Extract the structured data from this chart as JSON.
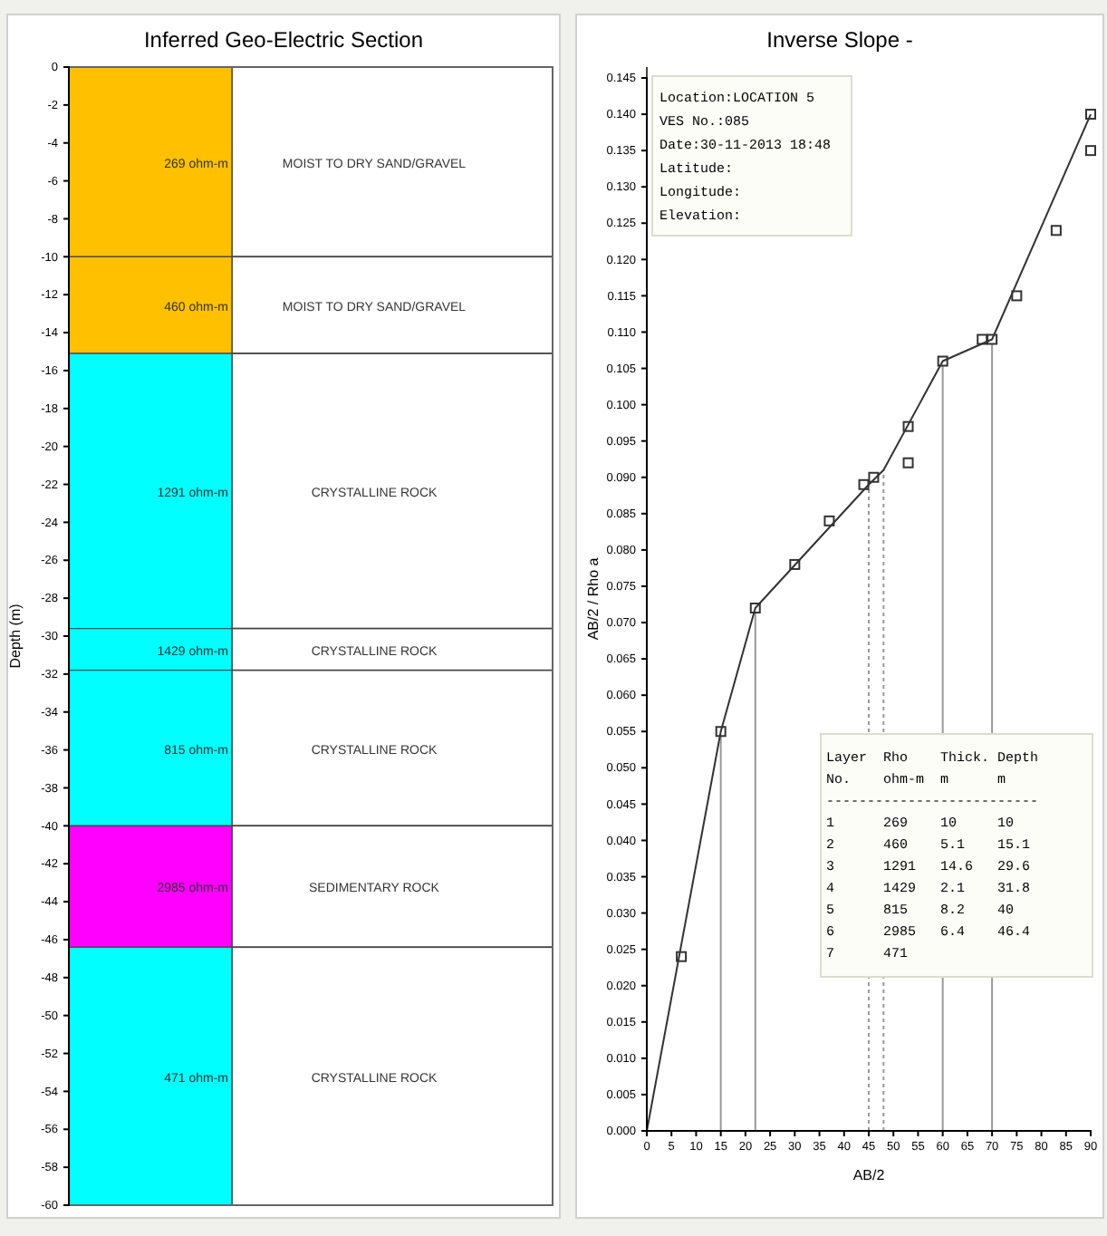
{
  "chart_data": [
    {
      "type": "bar",
      "stacked": true,
      "title": "Inferred Geo-Electric Section",
      "ylabel": "Depth (m)",
      "categories": [
        null
      ],
      "ylim": [
        -60,
        0
      ],
      "yticks": [
        0,
        -2,
        -4,
        -6,
        -8,
        -10,
        -12,
        -14,
        -16,
        -18,
        -20,
        -22,
        -24,
        -26,
        -28,
        -30,
        -32,
        -34,
        -36,
        -38,
        -40,
        -42,
        -44,
        -46,
        -48,
        -50,
        -52,
        -54,
        -56,
        -58,
        -60
      ],
      "series": [
        {
          "name": "MOIST TO DRY SAND/GRAVEL",
          "color": "#ffc000",
          "values": [
            -10
          ]
        },
        {
          "name": "MOIST TO DRY SAND/GRAVEL",
          "color": "#ffc000",
          "values": [
            -5.1
          ]
        },
        {
          "name": "CRYSTALLINE ROCK",
          "color": "#00ffff",
          "values": [
            -14.5
          ]
        },
        {
          "name": "CRYSTALLINE ROCK",
          "color": "#00ffff",
          "values": [
            -2.2
          ]
        },
        {
          "name": "CRYSTALLINE ROCK",
          "color": "#00ffff",
          "values": [
            -8.2
          ]
        },
        {
          "name": "SEDIMENTARY ROCK",
          "color": "#ff00ff",
          "values": [
            -6.4
          ]
        },
        {
          "name": "CRYSTALLINE ROCK",
          "color": "#00ffff",
          "values": [
            -13.6
          ]
        }
      ],
      "annotations": [
        "269 ohm-m",
        "460 ohm-m",
        "1291 ohm-m",
        "1429 ohm-m",
        "815 ohm-m",
        "2985 ohm-m",
        "471 ohm-m"
      ]
    },
    {
      "type": "line",
      "title": "Inverse Slope -",
      "xlabel": "AB/2",
      "ylabel": "AB/2 / Rho a",
      "xlim": [
        0,
        90
      ],
      "ylim": [
        0,
        0.145
      ],
      "marker": "square",
      "xticks": [
        0,
        5,
        10,
        15,
        20,
        25,
        30,
        35,
        40,
        45,
        50,
        55,
        60,
        65,
        70,
        75,
        80,
        85,
        90
      ],
      "yticks": [
        {
          "value": 0,
          "label": "0.000"
        },
        {
          "value": 0.005,
          "label": "0.005"
        },
        {
          "value": 0.01,
          "label": "0.010"
        },
        {
          "value": 0.015,
          "label": "0.015"
        },
        {
          "value": 0.02,
          "label": "0.020"
        },
        {
          "value": 0.025,
          "label": "0.025"
        },
        {
          "value": 0.03,
          "label": "0.030"
        },
        {
          "value": 0.035,
          "label": "0.035"
        },
        {
          "value": 0.04,
          "label": "0.040"
        },
        {
          "value": 0.045,
          "label": "0.045"
        },
        {
          "value": 0.05,
          "label": "0.050"
        },
        {
          "value": 0.055,
          "label": "0.055"
        },
        {
          "value": 0.06,
          "label": "0.060"
        },
        {
          "value": 0.065,
          "label": "0.065"
        },
        {
          "value": 0.07,
          "label": "0.070"
        },
        {
          "value": 0.075,
          "label": "0.075"
        },
        {
          "value": 0.08,
          "label": "0.080"
        },
        {
          "value": 0.085,
          "label": "0.085"
        },
        {
          "value": 0.09,
          "label": "0.090"
        },
        {
          "value": 0.095,
          "label": "0.095"
        },
        {
          "value": 0.1,
          "label": "0.100"
        },
        {
          "value": 0.105,
          "label": "0.105"
        },
        {
          "value": 0.11,
          "label": "0.110"
        },
        {
          "value": 0.115,
          "label": "0.115"
        },
        {
          "value": 0.12,
          "label": "0.120"
        },
        {
          "value": 0.125,
          "label": "0.125"
        },
        {
          "value": 0.13,
          "label": "0.130"
        },
        {
          "value": 0.135,
          "label": "0.135"
        },
        {
          "value": 0.14,
          "label": "0.140"
        },
        {
          "value": 0.145,
          "label": "0.145"
        }
      ],
      "series": [
        {
          "type": "scatter",
          "color": "#333333",
          "x": [
            7,
            15,
            22,
            30,
            37,
            44,
            46,
            53,
            53,
            60,
            68,
            70,
            75,
            83,
            90,
            90
          ],
          "values": [
            0.024,
            0.055,
            0.072,
            0.078,
            0.084,
            0.089,
            0.09,
            0.097,
            0.092,
            0.106,
            0.109,
            0.109,
            0.115,
            0.124,
            0.14,
            0.135
          ]
        },
        {
          "type": "line",
          "color": "#333333",
          "marker": "none",
          "x": [
            0,
            15,
            22,
            45,
            48,
            60,
            70,
            90
          ],
          "values": [
            0,
            0.055,
            0.072,
            0.089,
            0.091,
            0.106,
            0.109,
            0.14
          ]
        }
      ],
      "ref_lines": [
        {
          "axis": "x",
          "value": 15,
          "color": "#999999",
          "line_style": "solid"
        },
        {
          "axis": "x",
          "value": 22,
          "color": "#999999",
          "line_style": "solid"
        },
        {
          "axis": "x",
          "value": 45,
          "color": "#999999",
          "line_style": "dotted"
        },
        {
          "axis": "x",
          "value": 48,
          "color": "#999999",
          "line_style": "dotted"
        },
        {
          "axis": "x",
          "value": 60,
          "color": "#999999",
          "line_style": "solid"
        },
        {
          "axis": "x",
          "value": 70,
          "color": "#999999",
          "line_style": "solid"
        }
      ],
      "annotations": [
        "Location:LOCATION 5",
        "VES No.:085",
        "Date:30-11-2013 18:48",
        "Latitude:",
        "Longitude:",
        "Elevation:",
        "Layer  Rho    Thick. Depth",
        "No.    ohm-m  m      m",
        "--------------------------",
        "1      269    10     10",
        "2      460    5.1    15.1",
        "3      1291   14.6   29.6",
        "4      1429   2.1    31.8",
        "5      815    8.2    40",
        "6      2985   6.4    46.4",
        "7      471"
      ]
    }
  ]
}
